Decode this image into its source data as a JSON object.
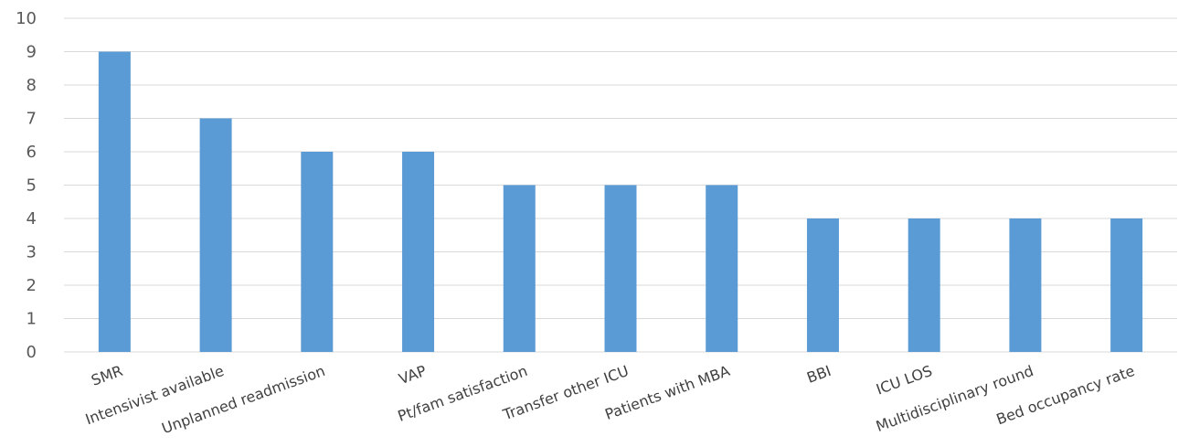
{
  "chart_data": {
    "type": "bar",
    "title": "",
    "xlabel": "",
    "ylabel": "",
    "categories": [
      "SMR",
      "Intensivist available",
      "Unplanned readmission",
      "VAP",
      "Pt/fam satisfaction",
      "Transfer other ICU",
      "Patients with MBA",
      "BBI",
      "ICU LOS",
      "Multidisciplinary round",
      "Bed occupancy rate"
    ],
    "values": [
      9,
      7,
      6,
      6,
      5,
      5,
      5,
      4,
      4,
      4,
      4
    ],
    "ylim": [
      0,
      10
    ],
    "yticks": [
      0,
      1,
      2,
      3,
      4,
      5,
      6,
      7,
      8,
      9,
      10
    ],
    "grid": true,
    "legend": "none",
    "bar_color": "#5b9bd5",
    "grid_color": "#d9d9d9"
  }
}
